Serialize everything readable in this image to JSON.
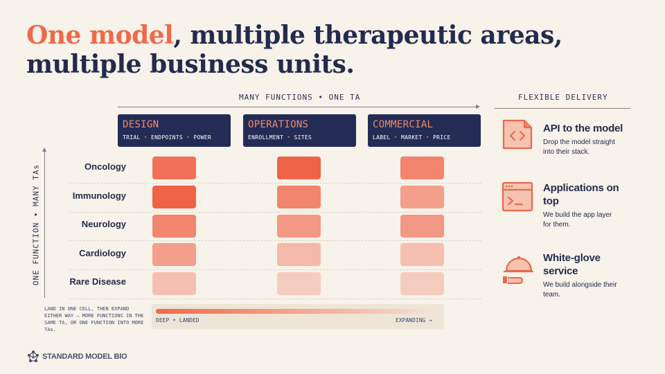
{
  "title": {
    "accent": "One model",
    "rest1": ", multiple therapeutic areas,",
    "line2": "multiple business units."
  },
  "top_axis_label": "MANY FUNCTIONS • ONE TA",
  "side_axis_label": "ONE FUNCTION • MANY TAs",
  "functions": [
    {
      "name": "DESIGN",
      "items": [
        "TRIAL",
        "ENDPOINTS",
        "POWER"
      ]
    },
    {
      "name": "OPERATIONS",
      "items": [
        "ENROLLMENT",
        "SITES"
      ]
    },
    {
      "name": "COMMERCIAL",
      "items": [
        "LABEL",
        "MARKET",
        "PRICE"
      ]
    }
  ],
  "therapeutic_areas": [
    "Oncology",
    "Immunology",
    "Neurology",
    "Cardiology",
    "Rare Disease"
  ],
  "heatmap_levels": [
    [
      0.9,
      1.0,
      0.75
    ],
    [
      1.0,
      0.75,
      0.55
    ],
    [
      0.75,
      0.6,
      0.6
    ],
    [
      0.55,
      0.35,
      0.3
    ],
    [
      0.3,
      0.2,
      0.2
    ]
  ],
  "colors": {
    "accent": "#ef6a4a",
    "navy": "#232c55",
    "background": "#f7f2ea"
  },
  "note": "LAND IN ONE CELL, THEN EXPAND EITHER WAY — MORE FUNCTIONS IN THE SAME TA, OR ONE FUNCTION INTO MORE TAs.",
  "legend": {
    "left": "DEEP • LANDED",
    "right": "EXPANDING →"
  },
  "delivery": {
    "heading": "FLEXIBLE DELIVERY",
    "items": [
      {
        "icon": "code-file-icon",
        "title": "API to the model",
        "desc": "Drop the model straight into their stack."
      },
      {
        "icon": "terminal-window-icon",
        "title": "Applications on top",
        "desc": "We build the app layer for them."
      },
      {
        "icon": "cloche-service-icon",
        "title": "White-glove service",
        "desc": "We build alongside their team."
      }
    ]
  },
  "brand": "STANDARD MODEL BIO"
}
